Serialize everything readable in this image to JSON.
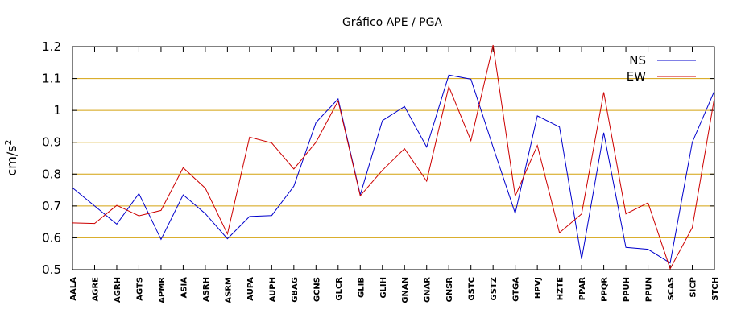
{
  "chart_data": {
    "type": "line",
    "title": "Gráfico  APE / PGA",
    "ylabel": "cm/s",
    "ylabel_superscript": "2",
    "xlabel": "",
    "ylim": [
      0.5,
      1.2
    ],
    "yticks": [
      0.5,
      0.6,
      0.7,
      0.8,
      0.9,
      1,
      1.1,
      1.2
    ],
    "ytick_labels": [
      "0.5",
      "0.6",
      "0.7",
      "0.8",
      "0.9",
      "1",
      "1.1",
      "1.2"
    ],
    "grid": "horizontal",
    "grid_color": "#d4a20f",
    "legend_position": "top-right",
    "categories": [
      "AALA",
      "AGRE",
      "AGRH",
      "AGTS",
      "APMR",
      "ASIA",
      "ASRH",
      "ASRM",
      "AUPA",
      "AUPH",
      "GBAG",
      "GCNS",
      "GLCR",
      "GLIB",
      "GLIH",
      "GNAN",
      "GNAR",
      "GNSR",
      "GSTC",
      "GSTZ",
      "GTGA",
      "HPVJ",
      "HZTE",
      "PPAR",
      "PPQR",
      "PPUH",
      "PPUN",
      "SCAS",
      "SICP",
      "STCH"
    ],
    "series": [
      {
        "name": "NS",
        "color": "#0000cc",
        "values": [
          0.757,
          0.7,
          0.643,
          0.739,
          0.595,
          0.735,
          0.676,
          0.597,
          0.667,
          0.67,
          0.762,
          0.962,
          1.036,
          0.735,
          0.968,
          1.012,
          0.885,
          1.111,
          1.098,
          0.885,
          0.677,
          0.983,
          0.948,
          0.533,
          0.93,
          0.57,
          0.564,
          0.521,
          0.9,
          1.061
        ]
      },
      {
        "name": "EW",
        "color": "#cc0000",
        "values": [
          0.647,
          0.645,
          0.702,
          0.669,
          0.686,
          0.82,
          0.756,
          0.612,
          0.916,
          0.898,
          0.816,
          0.9,
          1.03,
          0.732,
          0.812,
          0.88,
          0.778,
          1.075,
          0.905,
          1.205,
          0.731,
          0.89,
          0.616,
          0.675,
          1.057,
          0.675,
          0.71,
          0.503,
          0.632,
          1.04
        ]
      }
    ]
  }
}
